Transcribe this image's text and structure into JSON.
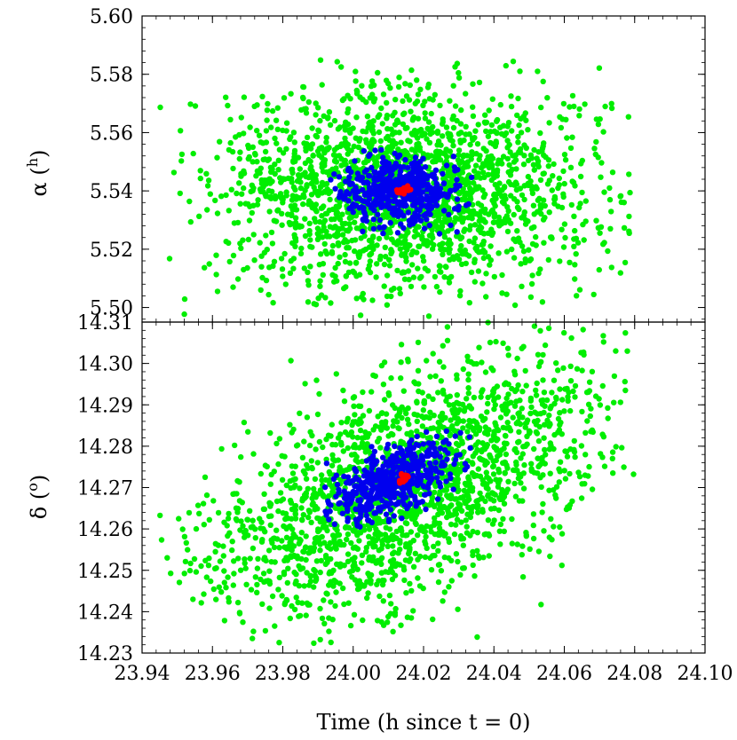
{
  "chart_data": [
    {
      "type": "scatter",
      "panel": "top",
      "ylabel": "α (h)",
      "ylabel_parts": {
        "symbol": "α (",
        "sup": "h",
        "close": ")"
      },
      "xlim": [
        23.94,
        24.1
      ],
      "ylim": [
        5.495,
        5.6
      ],
      "yticks": [
        5.5,
        5.52,
        5.54,
        5.56,
        5.58,
        5.6
      ],
      "ytick_labels": [
        "5.50",
        "5.52",
        "5.54",
        "5.56",
        "5.58",
        "5.60"
      ],
      "grid": false,
      "series": [
        {
          "color": "#00ee00",
          "center": [
            24.015,
            5.54
          ],
          "x_extent": [
            23.945,
            24.08
          ],
          "y_extent": [
            5.497,
            5.585
          ],
          "approx_points": 6000
        },
        {
          "color": "#0000ee",
          "center": [
            24.013,
            5.54
          ],
          "x_extent": [
            23.992,
            24.035
          ],
          "y_extent": [
            5.525,
            5.555
          ],
          "approx_points": 1500
        },
        {
          "color": "#ff0000",
          "center": [
            24.014,
            5.54
          ],
          "x_extent": [
            24.012,
            24.017
          ],
          "y_extent": [
            5.539,
            5.542
          ],
          "approx_points": 60
        }
      ]
    },
    {
      "type": "scatter",
      "panel": "bottom",
      "ylabel": "δ (o)",
      "ylabel_parts": {
        "symbol": "δ (",
        "sup": "o",
        "close": ")"
      },
      "xlabel": "Time (h since t = 0)",
      "xlim": [
        23.94,
        24.1
      ],
      "ylim": [
        14.23,
        14.31
      ],
      "xticks": [
        23.94,
        23.96,
        23.98,
        24.0,
        24.02,
        24.04,
        24.06,
        24.08,
        24.1
      ],
      "xtick_labels": [
        "23.94",
        "23.96",
        "23.98",
        "24.00",
        "24.02",
        "24.04",
        "24.06",
        "24.08",
        "24.10"
      ],
      "yticks": [
        14.23,
        14.24,
        14.25,
        14.26,
        14.27,
        14.28,
        14.29,
        14.3,
        14.31
      ],
      "ytick_labels": [
        "14.23",
        "14.24",
        "14.25",
        "14.26",
        "14.27",
        "14.28",
        "14.29",
        "14.30",
        "14.31"
      ],
      "grid": false,
      "series": [
        {
          "color": "#00ee00",
          "center": [
            24.015,
            14.27
          ],
          "x_extent": [
            23.945,
            24.08
          ],
          "y_extent": [
            14.232,
            14.31
          ],
          "approx_points": 6000
        },
        {
          "color": "#0000ee",
          "center": [
            24.012,
            14.272
          ],
          "x_extent": [
            23.991,
            24.035
          ],
          "y_extent": [
            14.26,
            14.285
          ],
          "approx_points": 1500
        },
        {
          "color": "#ff0000",
          "center": [
            24.014,
            14.272
          ],
          "x_extent": [
            24.012,
            24.016
          ],
          "y_extent": [
            14.271,
            14.274
          ],
          "approx_points": 60
        }
      ]
    }
  ]
}
